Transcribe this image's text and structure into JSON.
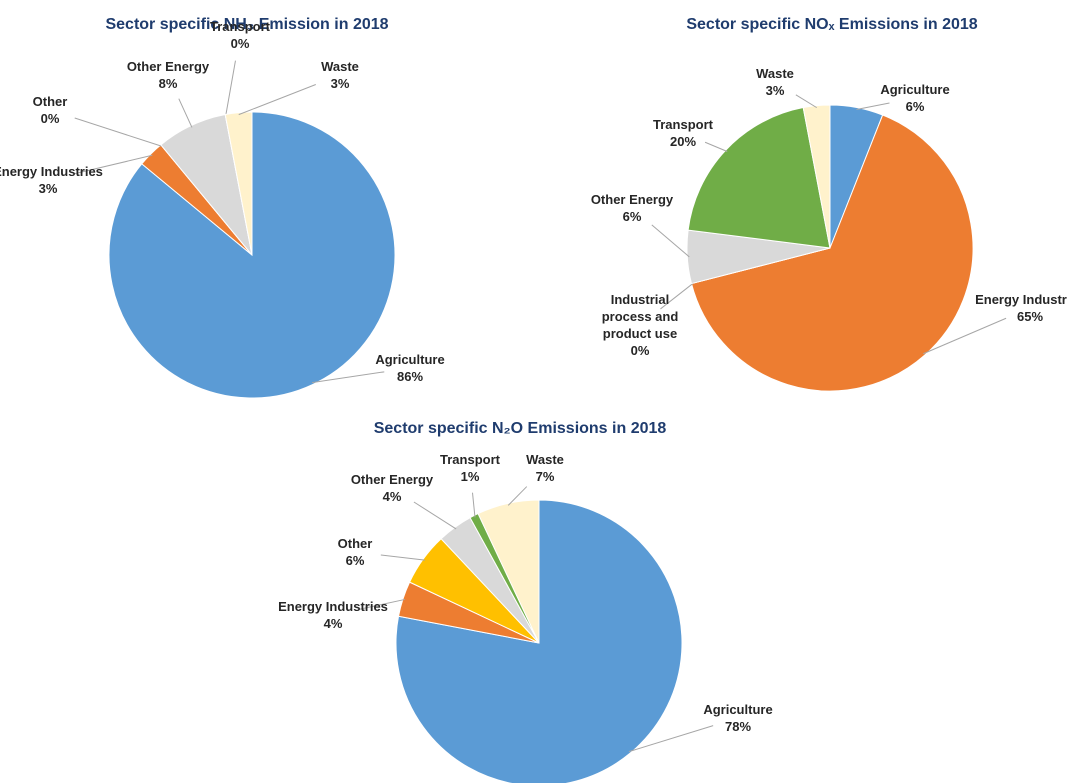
{
  "chart_data": [
    {
      "type": "pie",
      "title": "Sector specific NH₃ Emission in 2018",
      "categories": [
        "Agriculture",
        "Energy Industries",
        "Other",
        "Other Energy",
        "Transport",
        "Waste"
      ],
      "values": [
        86,
        3,
        0,
        8,
        0,
        3
      ],
      "value_labels": [
        "86%",
        "3%",
        "0%",
        "8%",
        "0%",
        "3%"
      ],
      "colors": [
        "#5b9bd5",
        "#ed7d31",
        "#ffc000",
        "#d9d9d9",
        "#70ad47",
        "#fff2cc"
      ]
    },
    {
      "type": "pie",
      "title": "Sector specific NOₓ Emissions in 2018",
      "categories": [
        "Agriculture",
        "Energy Industries",
        "Industrial process and product use",
        "Other Energy",
        "Transport",
        "Waste"
      ],
      "values": [
        6,
        65,
        0,
        6,
        20,
        3
      ],
      "value_labels": [
        "6%",
        "65%",
        "0%",
        "6%",
        "20%",
        "3%"
      ],
      "colors": [
        "#5b9bd5",
        "#ed7d31",
        "#ffc000",
        "#d9d9d9",
        "#70ad47",
        "#fff2cc"
      ]
    },
    {
      "type": "pie",
      "title": "Sector specific N₂O Emissions in 2018",
      "categories": [
        "Agriculture",
        "Energy Industries",
        "Other",
        "Other Energy",
        "Transport",
        "Waste"
      ],
      "values": [
        78,
        4,
        6,
        4,
        1,
        7
      ],
      "value_labels": [
        "78%",
        "4%",
        "6%",
        "4%",
        "1%",
        "7%"
      ],
      "colors": [
        "#5b9bd5",
        "#ed7d31",
        "#ffc000",
        "#d9d9d9",
        "#70ad47",
        "#fff2cc"
      ]
    }
  ]
}
